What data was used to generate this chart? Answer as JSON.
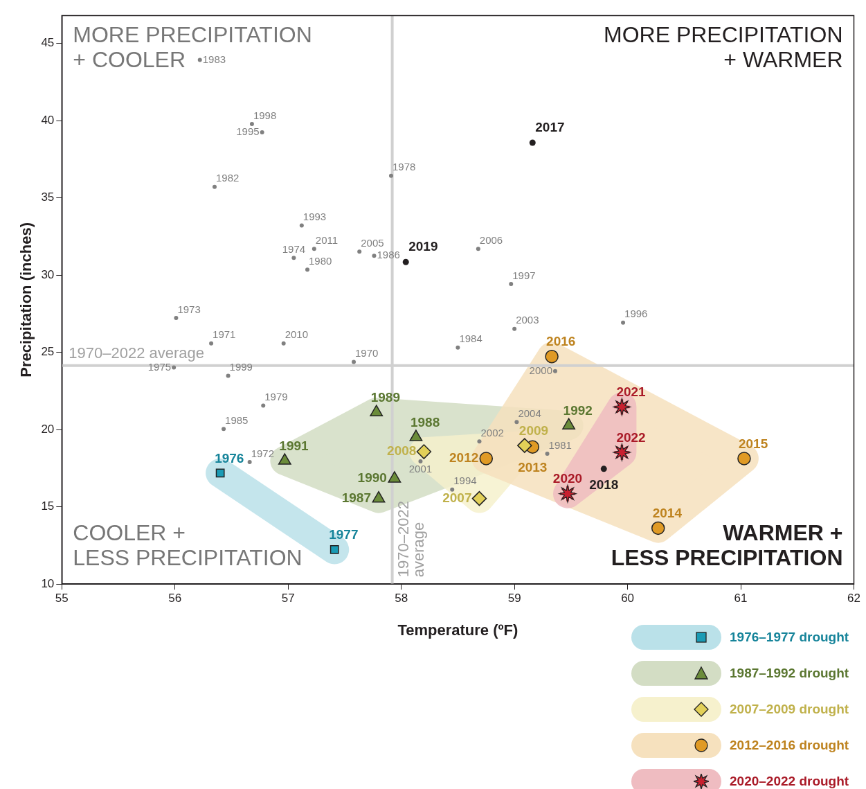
{
  "chart_data": {
    "type": "scatter",
    "xlabel": "Temperature (ºF)",
    "ylabel": "Precipitation (inches)",
    "xlim": [
      55,
      62
    ],
    "xticks": [
      55,
      56,
      57,
      58,
      59,
      60,
      61,
      62
    ],
    "ylim": [
      10,
      46.8
    ],
    "yticks": [
      10,
      15,
      20,
      25,
      30,
      35,
      40,
      45
    ],
    "grid": false,
    "legend": "bottom right",
    "series": [
      {
        "color": "#808080",
        "marker": "circle",
        "x": [
          56.22,
          56.68,
          56.77,
          56.35,
          57.91,
          57.12,
          57.23,
          57.05,
          57.17,
          57.63,
          57.76,
          56.01,
          56.32,
          56.96,
          57.58,
          55.99,
          56.47,
          56.78,
          56.43,
          56.66,
          58.68,
          58.97,
          59.0,
          58.5,
          59.96,
          59.36,
          59.02,
          58.69,
          58.17,
          58.45,
          59.29
        ],
        "values": [
          43.93,
          39.78,
          39.24,
          35.71,
          36.43,
          33.21,
          31.7,
          31.12,
          30.36,
          31.52,
          31.25,
          27.23,
          25.58,
          25.58,
          24.38,
          24.02,
          23.48,
          21.56,
          20.04,
          17.9,
          31.7,
          29.42,
          26.52,
          25.31,
          26.92,
          23.79,
          20.49,
          19.24,
          17.95,
          16.12,
          18.44
        ]
      },
      {
        "color": "#231f20",
        "marker": "circle",
        "x": [
          59.16,
          58.04,
          59.79
        ],
        "values": [
          38.57,
          30.85,
          17.46
        ]
      },
      {
        "name": "1976–1977 drought",
        "color": "#1a9bb5",
        "marker": "square",
        "x": [
          56.4,
          57.41
        ],
        "values": [
          17.19,
          12.23
        ]
      },
      {
        "name": "1987–1992 drought",
        "color": "#6b8c3a",
        "marker": "triangle",
        "x": [
          57.78,
          58.13,
          56.97,
          57.94,
          57.8,
          59.48
        ],
        "values": [
          21.12,
          19.51,
          17.99,
          16.83,
          15.54,
          20.27
        ]
      },
      {
        "name": "2007–2009 drought",
        "color": "#e2d058",
        "marker": "diamond",
        "x": [
          58.2,
          59.09,
          58.69
        ],
        "values": [
          18.57,
          18.97,
          15.54
        ]
      },
      {
        "name": "2012–2016 drought",
        "color": "#e09a25",
        "marker": "circle",
        "x": [
          59.33,
          58.75,
          59.16,
          61.03,
          60.27
        ],
        "values": [
          24.73,
          18.13,
          18.88,
          18.13,
          13.62
        ]
      },
      {
        "name": "2020–2022 drought",
        "color": "#c8202f",
        "marker": "star",
        "x": [
          59.95,
          59.95,
          59.47
        ],
        "values": [
          21.47,
          18.53,
          15.85
        ]
      }
    ],
    "ref_lines": [
      {
        "axis": "x",
        "value": 57.92,
        "label": "1970–2022 average",
        "color": "#d0d0d0"
      },
      {
        "axis": "y",
        "value": 24.15,
        "label": "1970–2022 average",
        "color": "#d0d0d0"
      }
    ],
    "annotations": [
      "MORE PRECIPITATION\n+ COOLER",
      "MORE PRECIPITATION\n+ WARMER",
      "COOLER +\nLESS PRECIPITATION",
      "WARMER +\nLESS PRECIPITATION",
      {
        "text": "1983",
        "x": 56.22,
        "y": 43.93
      },
      {
        "text": "1998",
        "x": 56.68,
        "y": 39.78
      },
      {
        "text": "1995",
        "x": 56.77,
        "y": 39.24
      },
      {
        "text": "1982",
        "x": 56.35,
        "y": 35.71
      },
      {
        "text": "1978",
        "x": 57.91,
        "y": 36.43
      },
      {
        "text": "1993",
        "x": 57.12,
        "y": 33.21
      },
      {
        "text": "2011",
        "x": 57.23,
        "y": 31.7
      },
      {
        "text": "1974",
        "x": 57.05,
        "y": 31.12
      },
      {
        "text": "1980",
        "x": 57.17,
        "y": 30.36
      },
      {
        "text": "2005",
        "x": 57.63,
        "y": 31.52
      },
      {
        "text": "1986",
        "x": 57.76,
        "y": 31.25
      },
      {
        "text": "1973",
        "x": 56.01,
        "y": 27.23
      },
      {
        "text": "1971",
        "x": 56.32,
        "y": 25.58
      },
      {
        "text": "2010",
        "x": 56.96,
        "y": 25.58
      },
      {
        "text": "1970",
        "x": 57.58,
        "y": 24.38
      },
      {
        "text": "1975",
        "x": 55.99,
        "y": 24.02
      },
      {
        "text": "1999",
        "x": 56.47,
        "y": 23.48
      },
      {
        "text": "1979",
        "x": 56.78,
        "y": 21.56
      },
      {
        "text": "1985",
        "x": 56.43,
        "y": 20.04
      },
      {
        "text": "1972",
        "x": 56.66,
        "y": 17.9
      },
      {
        "text": "2006",
        "x": 58.68,
        "y": 31.7
      },
      {
        "text": "1997",
        "x": 58.97,
        "y": 29.42
      },
      {
        "text": "2003",
        "x": 59.0,
        "y": 26.52
      },
      {
        "text": "1984",
        "x": 58.5,
        "y": 25.31
      },
      {
        "text": "1996",
        "x": 59.96,
        "y": 26.92
      },
      {
        "text": "2000",
        "x": 59.36,
        "y": 23.79
      },
      {
        "text": "2004",
        "x": 59.02,
        "y": 20.49
      },
      {
        "text": "2002",
        "x": 58.69,
        "y": 19.24
      },
      {
        "text": "2001",
        "x": 58.17,
        "y": 17.95
      },
      {
        "text": "1994",
        "x": 58.45,
        "y": 16.12
      },
      {
        "text": "1981",
        "x": 59.29,
        "y": 18.44
      },
      {
        "text": "2017",
        "x": 59.16,
        "y": 38.57
      },
      {
        "text": "2019",
        "x": 58.04,
        "y": 30.85
      },
      {
        "text": "2018",
        "x": 59.79,
        "y": 17.46
      },
      {
        "text": "1976",
        "x": 56.4,
        "y": 17.19
      },
      {
        "text": "1977",
        "x": 57.41,
        "y": 12.23
      },
      {
        "text": "1989",
        "x": 57.78,
        "y": 21.12
      },
      {
        "text": "1988",
        "x": 58.13,
        "y": 19.51
      },
      {
        "text": "1991",
        "x": 56.97,
        "y": 17.99
      },
      {
        "text": "1990",
        "x": 57.94,
        "y": 16.83
      },
      {
        "text": "1987",
        "x": 57.8,
        "y": 15.54
      },
      {
        "text": "1992",
        "x": 59.48,
        "y": 20.27
      },
      {
        "text": "2008",
        "x": 58.2,
        "y": 18.57
      },
      {
        "text": "2009",
        "x": 59.09,
        "y": 18.97
      },
      {
        "text": "2007",
        "x": 58.69,
        "y": 15.54
      },
      {
        "text": "2016",
        "x": 59.33,
        "y": 24.73
      },
      {
        "text": "2012",
        "x": 58.75,
        "y": 18.13
      },
      {
        "text": "2013",
        "x": 59.16,
        "y": 18.88
      },
      {
        "text": "2015",
        "x": 61.03,
        "y": 18.13
      },
      {
        "text": "2014",
        "x": 60.27,
        "y": 13.62
      },
      {
        "text": "2021",
        "x": 59.95,
        "y": 21.47
      },
      {
        "text": "2022",
        "x": 59.95,
        "y": 18.53
      },
      {
        "text": "2020",
        "x": 59.47,
        "y": 15.85
      }
    ]
  }
}
